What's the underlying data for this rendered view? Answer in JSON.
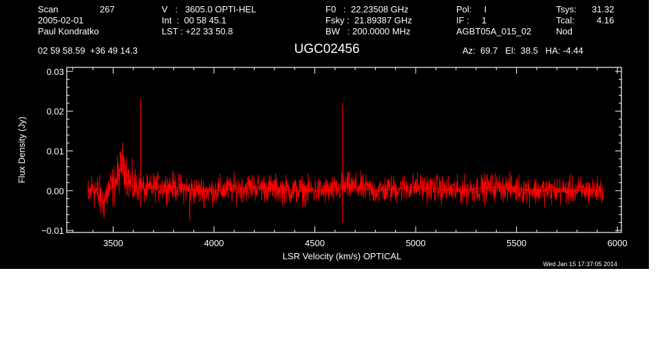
{
  "header": {
    "scan_label": "Scan",
    "scan_value": "267",
    "date": "2005-02-01",
    "observer": "Paul Kondratko",
    "v_line": "V   :   3605.0 OPTI-HEL",
    "int_line": "Int  :  00 58 45.1",
    "lst_line": "LST : +22 33 50.8",
    "f0_line": "F0   :  22.23508 GHz",
    "fsky_line": "Fsky :  21.89387 GHz",
    "bw_line": "BW   : 200.0000 MHz",
    "pol_line": "Pol:     I",
    "if_line": "IF :     1",
    "project": "AGBT05A_015_02",
    "tsys_label": "Tsys:",
    "tsys_value": "31.32",
    "tcal_label": "Tcal:",
    "tcal_value": "4.16",
    "nod_label": "Nod",
    "coords": "02 59 58.59  +36 49 14.3",
    "object_name": "UGC02456",
    "az_el_ha": "Az:  69.7   El:  38.5   HA: -4.44"
  },
  "timestamp": "Wed Jan 15 17:37:05 2014",
  "colors": {
    "background": "#000000",
    "axes": "#ffffff",
    "trace": "#ff0000"
  },
  "chart_data": {
    "type": "line",
    "xlabel": "LSR Velocity (km/s) OPTICAL",
    "ylabel": "Flux Density (Jy)",
    "xlim": [
      3270,
      6020
    ],
    "ylim": [
      -0.0105,
      0.031
    ],
    "x_ticks": [
      3500,
      4000,
      4500,
      5000,
      5500,
      6000
    ],
    "x_tick_labels": [
      "3500",
      "4000",
      "4500",
      "5000",
      "5500",
      "6000"
    ],
    "y_ticks": [
      -0.01,
      0.0,
      0.01,
      0.02,
      0.03
    ],
    "y_tick_labels": [
      "−0.01",
      "0.00",
      "0.01",
      "0.02",
      "0.03"
    ],
    "grid": false,
    "series": [
      {
        "x": [
          3375,
          3400,
          3425,
          3450,
          3475,
          3500,
          3520,
          3540,
          3550,
          3560,
          3570,
          3580,
          3600,
          3620,
          3640,
          3660,
          3700,
          3800,
          3900,
          4000,
          4200,
          4400,
          4600,
          4640,
          4700,
          4800,
          5000,
          5200,
          5400,
          5600,
          5800,
          5930
        ],
        "values": [
          -0.002,
          0.001,
          -0.001,
          -0.003,
          0.0,
          0.001,
          0.003,
          0.006,
          0.007,
          0.006,
          0.004,
          0.002,
          0.001,
          0.001,
          0.001,
          0.0,
          0.001,
          0.001,
          0.0,
          0.0,
          0.001,
          0.0,
          0.0,
          0.001,
          0.001,
          0.0,
          0.001,
          0.0,
          0.001,
          0.0,
          0.0,
          0.0
        ]
      }
    ],
    "spikes": [
      {
        "x": 3637,
        "values": [
          0.023,
          -0.004
        ]
      },
      {
        "x": 4638,
        "values": [
          0.022,
          -0.008
        ]
      },
      {
        "x": 3880,
        "values": [
          -0.0075
        ]
      },
      {
        "x": 3455,
        "values": [
          -0.0065
        ]
      }
    ]
  }
}
